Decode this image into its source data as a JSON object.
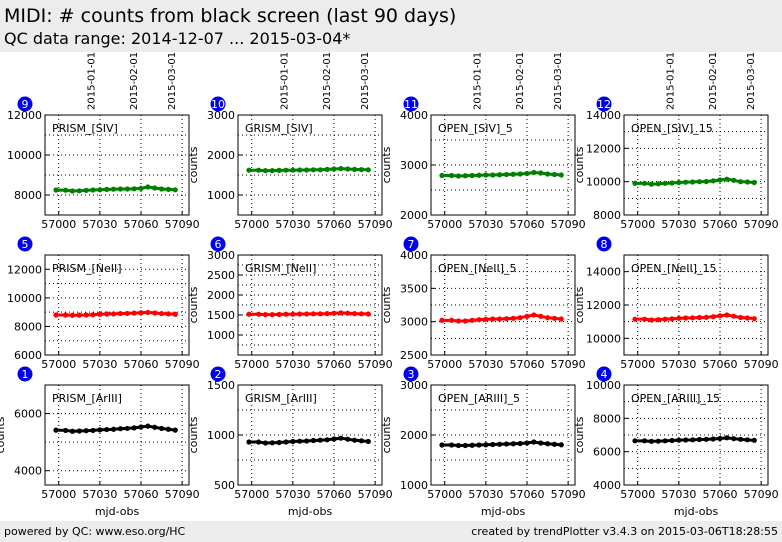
{
  "header": {
    "title": "MIDI: # counts from black screen (last 90 days)",
    "subtitle": "QC data range: 2014-12-07 ... 2015-03-04*"
  },
  "footer": {
    "left": "powered by QC: www.eso.org/HC",
    "right": "created by trendPlotter v3.4.3 on 2015-03-06T18:28:55"
  },
  "chart_data": [
    {
      "type": "scatter",
      "panel_number": "9",
      "label": "PRISM_[SIV]",
      "color": "#008000",
      "ylabel": "",
      "xlabel": "",
      "xlim": [
        56990,
        57095
      ],
      "ylim": [
        7000,
        12000
      ],
      "yticks": [
        8000,
        10000,
        12000
      ],
      "xticks": [
        57000,
        57030,
        57060,
        57090
      ],
      "date_ticks": [
        "2015-01-01",
        "2015-02-01",
        "2015-03-01"
      ],
      "date_mjd": [
        57023,
        57054,
        57082
      ],
      "x": [
        56998,
        57005,
        57010,
        57015,
        57020,
        57025,
        57030,
        57035,
        57040,
        57045,
        57050,
        57055,
        57060,
        57065,
        57070,
        57075,
        57080,
        57085
      ],
      "y": [
        8250,
        8240,
        8200,
        8210,
        8230,
        8250,
        8260,
        8280,
        8290,
        8300,
        8300,
        8310,
        8330,
        8400,
        8350,
        8300,
        8280,
        8260
      ]
    },
    {
      "type": "scatter",
      "panel_number": "10",
      "label": "GRISM_[SIV]",
      "color": "#008000",
      "ylabel": "counts",
      "xlabel": "",
      "xlim": [
        56990,
        57095
      ],
      "ylim": [
        500,
        3000
      ],
      "yticks": [
        1000,
        2000,
        3000
      ],
      "xticks": [
        57000,
        57030,
        57060,
        57090
      ],
      "date_ticks": [
        "2015-01-01",
        "2015-02-01",
        "2015-03-01"
      ],
      "date_mjd": [
        57023,
        57054,
        57082
      ],
      "x": [
        56998,
        57005,
        57010,
        57015,
        57020,
        57025,
        57030,
        57035,
        57040,
        57045,
        57050,
        57055,
        57060,
        57065,
        57070,
        57075,
        57080,
        57085
      ],
      "y": [
        1620,
        1620,
        1610,
        1610,
        1615,
        1620,
        1620,
        1625,
        1625,
        1630,
        1630,
        1640,
        1650,
        1660,
        1650,
        1640,
        1635,
        1630
      ]
    },
    {
      "type": "scatter",
      "panel_number": "11",
      "label": "OPEN_[SIV]_5",
      "color": "#008000",
      "ylabel": "counts",
      "xlabel": "",
      "xlim": [
        56990,
        57095
      ],
      "ylim": [
        2000,
        4000
      ],
      "yticks": [
        2000,
        3000,
        4000
      ],
      "xticks": [
        57000,
        57030,
        57060,
        57090
      ],
      "date_ticks": [
        "2015-01-01",
        "2015-02-01",
        "2015-03-01"
      ],
      "date_mjd": [
        57023,
        57054,
        57082
      ],
      "x": [
        56998,
        57005,
        57010,
        57015,
        57020,
        57025,
        57030,
        57035,
        57040,
        57045,
        57050,
        57055,
        57060,
        57065,
        57070,
        57075,
        57080,
        57085
      ],
      "y": [
        2790,
        2790,
        2780,
        2785,
        2790,
        2795,
        2800,
        2800,
        2805,
        2810,
        2815,
        2820,
        2830,
        2850,
        2840,
        2820,
        2810,
        2800
      ]
    },
    {
      "type": "scatter",
      "panel_number": "12",
      "label": "OPEN_[SIV]_15",
      "color": "#008000",
      "ylabel": "counts",
      "xlabel": "",
      "xlim": [
        56990,
        57095
      ],
      "ylim": [
        8000,
        14000
      ],
      "yticks": [
        8000,
        10000,
        12000,
        14000
      ],
      "xticks": [
        57000,
        57030,
        57060,
        57090
      ],
      "date_ticks": [
        "2015-01-01",
        "2015-02-01",
        "2015-03-01"
      ],
      "date_mjd": [
        57023,
        57054,
        57082
      ],
      "x": [
        56998,
        57005,
        57010,
        57015,
        57020,
        57025,
        57030,
        57035,
        57040,
        57045,
        57050,
        57055,
        57060,
        57065,
        57070,
        57075,
        57080,
        57085
      ],
      "y": [
        9900,
        9900,
        9850,
        9870,
        9900,
        9920,
        9950,
        9970,
        9980,
        10000,
        10010,
        10050,
        10100,
        10150,
        10080,
        10000,
        9980,
        9950
      ]
    },
    {
      "type": "scatter",
      "panel_number": "5",
      "label": "PRISM_[NeII]",
      "color": "#ff0000",
      "ylabel": "",
      "xlabel": "",
      "xlim": [
        56990,
        57095
      ],
      "ylim": [
        6000,
        13000
      ],
      "yticks": [
        6000,
        8000,
        10000,
        12000
      ],
      "xticks": [
        57000,
        57030,
        57060,
        57090
      ],
      "date_ticks": [],
      "date_mjd": [],
      "x": [
        56998,
        57005,
        57010,
        57015,
        57020,
        57025,
        57030,
        57035,
        57040,
        57045,
        57050,
        57055,
        57060,
        57065,
        57070,
        57075,
        57080,
        57085
      ],
      "y": [
        8800,
        8800,
        8780,
        8790,
        8800,
        8820,
        8850,
        8870,
        8880,
        8900,
        8910,
        8930,
        8960,
        8980,
        8940,
        8900,
        8880,
        8850
      ]
    },
    {
      "type": "scatter",
      "panel_number": "6",
      "label": "GRISM_[NeII]",
      "color": "#ff0000",
      "ylabel": "counts",
      "xlabel": "",
      "xlim": [
        56990,
        57095
      ],
      "ylim": [
        500,
        3000
      ],
      "yticks": [
        1000,
        1500,
        2000,
        2500,
        3000
      ],
      "xticks": [
        57000,
        57030,
        57060,
        57090
      ],
      "date_ticks": [],
      "date_mjd": [],
      "x": [
        56998,
        57005,
        57010,
        57015,
        57020,
        57025,
        57030,
        57035,
        57040,
        57045,
        57050,
        57055,
        57060,
        57065,
        57070,
        57075,
        57080,
        57085
      ],
      "y": [
        1520,
        1520,
        1510,
        1510,
        1515,
        1520,
        1520,
        1525,
        1525,
        1530,
        1530,
        1535,
        1545,
        1555,
        1545,
        1535,
        1530,
        1525
      ]
    },
    {
      "type": "scatter",
      "panel_number": "7",
      "label": "OPEN_[NeII]_5",
      "color": "#ff0000",
      "ylabel": "counts",
      "xlabel": "",
      "xlim": [
        56990,
        57095
      ],
      "ylim": [
        2500,
        4000
      ],
      "yticks": [
        2500,
        3000,
        3500,
        4000
      ],
      "xticks": [
        57000,
        57030,
        57060,
        57090
      ],
      "date_ticks": [],
      "date_mjd": [],
      "x": [
        56998,
        57005,
        57010,
        57015,
        57020,
        57025,
        57030,
        57035,
        57040,
        57045,
        57050,
        57055,
        57060,
        57065,
        57070,
        57075,
        57080,
        57085
      ],
      "y": [
        3020,
        3020,
        3010,
        3010,
        3020,
        3030,
        3035,
        3040,
        3040,
        3045,
        3050,
        3060,
        3080,
        3100,
        3080,
        3060,
        3050,
        3040
      ]
    },
    {
      "type": "scatter",
      "panel_number": "8",
      "label": "OPEN_[NeII]_15",
      "color": "#ff0000",
      "ylabel": "counts",
      "xlabel": "",
      "xlim": [
        56990,
        57095
      ],
      "ylim": [
        9000,
        15000
      ],
      "yticks": [
        10000,
        12000,
        14000
      ],
      "xticks": [
        57000,
        57030,
        57060,
        57090
      ],
      "date_ticks": [],
      "date_mjd": [],
      "x": [
        56998,
        57005,
        57010,
        57015,
        57020,
        57025,
        57030,
        57035,
        57040,
        57045,
        57050,
        57055,
        57060,
        57065,
        57070,
        57075,
        57080,
        57085
      ],
      "y": [
        11150,
        11150,
        11100,
        11120,
        11150,
        11170,
        11200,
        11220,
        11230,
        11250,
        11260,
        11300,
        11350,
        11400,
        11330,
        11250,
        11220,
        11180
      ]
    },
    {
      "type": "scatter",
      "panel_number": "1",
      "label": "PRISM_[ArIII]",
      "color": "#000000",
      "ylabel": "counts",
      "xlabel": "mjd-obs",
      "xlim": [
        56990,
        57095
      ],
      "ylim": [
        3500,
        7000
      ],
      "yticks": [
        4000,
        6000
      ],
      "xticks": [
        57000,
        57030,
        57060,
        57090
      ],
      "date_ticks": [],
      "date_mjd": [],
      "x": [
        56998,
        57005,
        57010,
        57015,
        57020,
        57025,
        57030,
        57035,
        57040,
        57045,
        57050,
        57055,
        57060,
        57065,
        57070,
        57075,
        57080,
        57085
      ],
      "y": [
        5420,
        5410,
        5380,
        5390,
        5400,
        5410,
        5430,
        5440,
        5450,
        5470,
        5480,
        5500,
        5530,
        5560,
        5520,
        5480,
        5450,
        5420
      ]
    },
    {
      "type": "scatter",
      "panel_number": "2",
      "label": "GRISM_[ArIII]",
      "color": "#000000",
      "ylabel": "counts",
      "xlabel": "mjd-obs",
      "xlim": [
        56990,
        57095
      ],
      "ylim": [
        500,
        1500
      ],
      "yticks": [
        500,
        1000,
        1500
      ],
      "xticks": [
        57000,
        57030,
        57060,
        57090
      ],
      "date_ticks": [],
      "date_mjd": [],
      "x": [
        56998,
        57005,
        57010,
        57015,
        57020,
        57025,
        57030,
        57035,
        57040,
        57045,
        57050,
        57055,
        57060,
        57065,
        57070,
        57075,
        57080,
        57085
      ],
      "y": [
        930,
        930,
        920,
        922,
        925,
        930,
        935,
        938,
        940,
        945,
        948,
        952,
        960,
        968,
        958,
        948,
        942,
        935
      ]
    },
    {
      "type": "scatter",
      "panel_number": "3",
      "label": "OPEN_[ARIII]_5",
      "color": "#000000",
      "ylabel": "counts",
      "xlabel": "mjd-obs",
      "xlim": [
        56990,
        57095
      ],
      "ylim": [
        1000,
        3000
      ],
      "yticks": [
        1000,
        2000,
        3000
      ],
      "xticks": [
        57000,
        57030,
        57060,
        57090
      ],
      "date_ticks": [],
      "date_mjd": [],
      "x": [
        56998,
        57005,
        57010,
        57015,
        57020,
        57025,
        57030,
        57035,
        57040,
        57045,
        57050,
        57055,
        57060,
        57065,
        57070,
        57075,
        57080,
        57085
      ],
      "y": [
        1800,
        1800,
        1790,
        1790,
        1795,
        1800,
        1805,
        1810,
        1815,
        1820,
        1825,
        1830,
        1840,
        1860,
        1840,
        1825,
        1815,
        1805
      ]
    },
    {
      "type": "scatter",
      "panel_number": "4",
      "label": "OPEN_[ARIII]_15",
      "color": "#000000",
      "ylabel": "counts",
      "xlabel": "mjd-obs",
      "xlim": [
        56990,
        57095
      ],
      "ylim": [
        4000,
        10000
      ],
      "yticks": [
        4000,
        6000,
        8000,
        10000
      ],
      "xticks": [
        57000,
        57030,
        57060,
        57090
      ],
      "date_ticks": [],
      "date_mjd": [],
      "x": [
        56998,
        57005,
        57010,
        57015,
        57020,
        57025,
        57030,
        57035,
        57040,
        57045,
        57050,
        57055,
        57060,
        57065,
        57070,
        57075,
        57080,
        57085
      ],
      "y": [
        6650,
        6650,
        6620,
        6630,
        6650,
        6670,
        6690,
        6700,
        6710,
        6730,
        6740,
        6760,
        6790,
        6830,
        6780,
        6740,
        6710,
        6680
      ]
    }
  ]
}
